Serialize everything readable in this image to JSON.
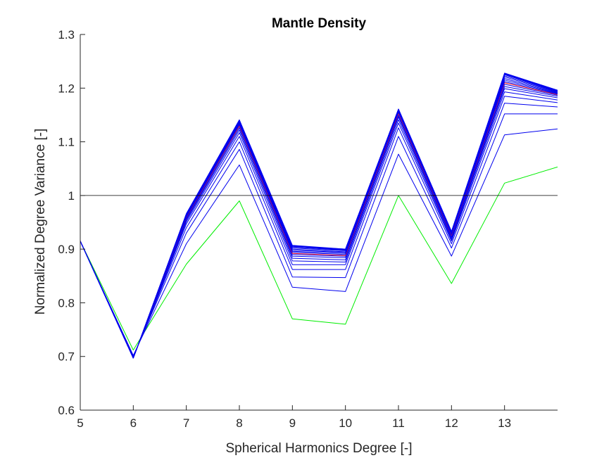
{
  "chart_data": {
    "type": "line",
    "title": "Mantle Density",
    "xlabel": "Spherical Harmonics Degree [-]",
    "ylabel": "Normalized Degree Variance [-]",
    "xlim": [
      5,
      14
    ],
    "ylim": [
      0.6,
      1.3
    ],
    "xticks": [
      "5",
      "6",
      "7",
      "8",
      "9",
      "10",
      "11",
      "12",
      "13"
    ],
    "yticks": [
      "0.6",
      "0.7",
      "0.8",
      "0.9",
      "1",
      "1.1",
      "1.2",
      "1.3"
    ],
    "xtick_values": [
      5,
      6,
      7,
      8,
      9,
      10,
      11,
      12,
      13
    ],
    "ytick_values": [
      0.6,
      0.7,
      0.8,
      0.9,
      1.0,
      1.1,
      1.2,
      1.3
    ],
    "grid": false,
    "legend": "none",
    "reference_line": {
      "y": 1.0,
      "color": "#000000"
    },
    "x": [
      5,
      6,
      7,
      8,
      9,
      10,
      11,
      12,
      13,
      14
    ],
    "series_colors": {
      "first_iteration": "#00ee00",
      "iterations": "#0000ee",
      "highlight": "#ff2020"
    },
    "series": [
      {
        "color": "#00ee00",
        "values": [
          0.915,
          0.712,
          0.872,
          0.99,
          0.77,
          0.76,
          1.0,
          0.836,
          1.023,
          1.053
        ]
      },
      {
        "color": "#0000ee",
        "values": [
          0.915,
          0.702,
          0.91,
          1.057,
          0.829,
          0.821,
          1.077,
          0.887,
          1.113,
          1.124
        ]
      },
      {
        "color": "#0000ee",
        "values": [
          0.915,
          0.7,
          0.93,
          1.086,
          0.848,
          0.847,
          1.11,
          0.902,
          1.152,
          1.152
        ]
      },
      {
        "color": "#0000ee",
        "values": [
          0.915,
          0.699,
          0.94,
          1.1,
          0.862,
          0.862,
          1.126,
          0.91,
          1.172,
          1.165
        ]
      },
      {
        "color": "#0000ee",
        "values": [
          0.915,
          0.698,
          0.947,
          1.11,
          0.871,
          0.871,
          1.135,
          0.915,
          1.185,
          1.173
        ]
      },
      {
        "color": "#0000ee",
        "values": [
          0.915,
          0.698,
          0.951,
          1.117,
          0.878,
          0.876,
          1.141,
          0.918,
          1.193,
          1.178
        ]
      },
      {
        "color": "#0000ee",
        "values": [
          0.915,
          0.697,
          0.954,
          1.122,
          0.883,
          0.88,
          1.146,
          0.921,
          1.199,
          1.182
        ]
      },
      {
        "color": "#0000ee",
        "values": [
          0.915,
          0.697,
          0.956,
          1.126,
          0.887,
          0.884,
          1.149,
          0.923,
          1.203,
          1.185
        ]
      },
      {
        "color": "#0000ee",
        "values": [
          0.915,
          0.697,
          0.958,
          1.129,
          0.89,
          0.887,
          1.152,
          0.925,
          1.207,
          1.187
        ]
      },
      {
        "color": "#ff2020",
        "values": [
          0.915,
          0.697,
          0.959,
          1.13,
          0.892,
          0.888,
          1.153,
          0.926,
          1.21,
          1.188
        ]
      },
      {
        "color": "#0000ee",
        "values": [
          0.915,
          0.697,
          0.96,
          1.132,
          0.894,
          0.89,
          1.155,
          0.927,
          1.212,
          1.189
        ]
      },
      {
        "color": "#0000ee",
        "values": [
          0.915,
          0.697,
          0.961,
          1.134,
          0.896,
          0.892,
          1.156,
          0.928,
          1.215,
          1.19
        ]
      },
      {
        "color": "#0000ee",
        "values": [
          0.915,
          0.697,
          0.962,
          1.136,
          0.898,
          0.894,
          1.157,
          0.929,
          1.218,
          1.191
        ]
      },
      {
        "color": "#0000ee",
        "values": [
          0.915,
          0.697,
          0.963,
          1.137,
          0.9,
          0.895,
          1.158,
          0.93,
          1.221,
          1.192
        ]
      },
      {
        "color": "#0000ee",
        "values": [
          0.915,
          0.697,
          0.964,
          1.138,
          0.902,
          0.897,
          1.159,
          0.931,
          1.223,
          1.193
        ]
      },
      {
        "color": "#0000ee",
        "values": [
          0.915,
          0.697,
          0.965,
          1.139,
          0.904,
          0.898,
          1.16,
          0.932,
          1.225,
          1.194
        ]
      },
      {
        "color": "#0000ee",
        "values": [
          0.915,
          0.697,
          0.965,
          1.14,
          0.905,
          0.899,
          1.16,
          0.932,
          1.226,
          1.195
        ]
      },
      {
        "color": "#0000ee",
        "values": [
          0.915,
          0.697,
          0.966,
          1.14,
          0.906,
          0.9,
          1.161,
          0.933,
          1.227,
          1.196
        ]
      },
      {
        "color": "#0000ee",
        "values": [
          0.915,
          0.697,
          0.966,
          1.141,
          0.907,
          0.9,
          1.161,
          0.933,
          1.228,
          1.196
        ]
      }
    ]
  }
}
